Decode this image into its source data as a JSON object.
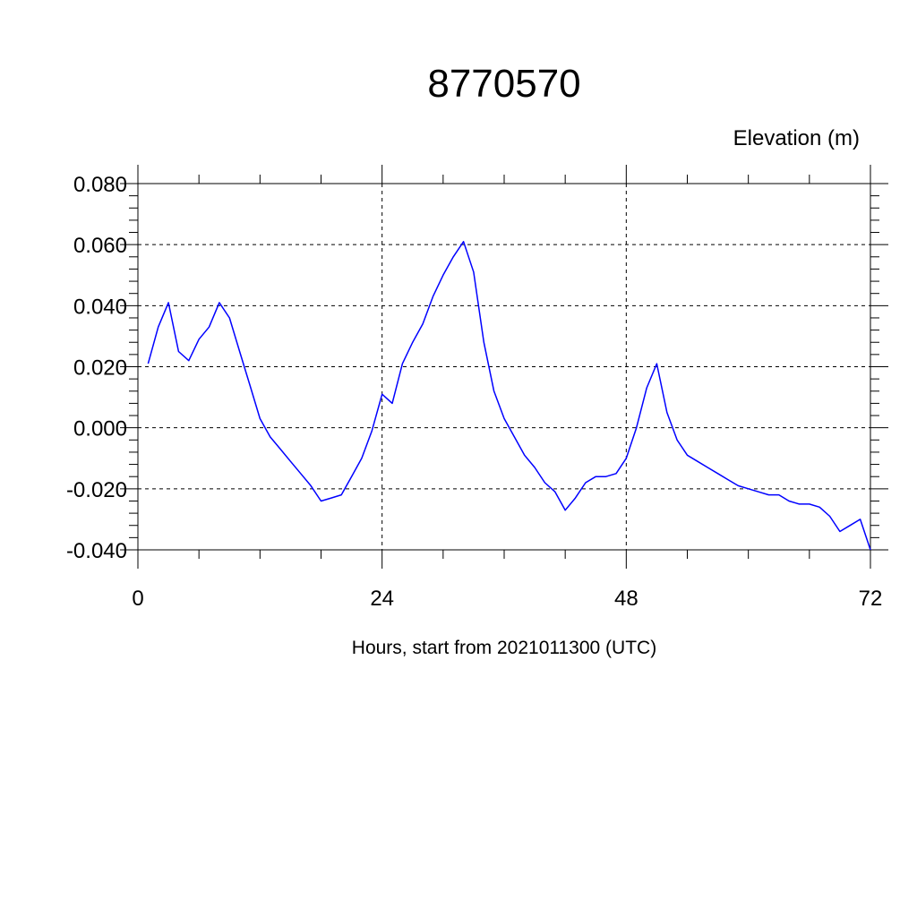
{
  "chart_data": {
    "type": "line",
    "title": "8770570",
    "ylabel": "Elevation (m)",
    "xlabel": "Hours, start from 2021011300 (UTC)",
    "xlim": [
      0,
      72
    ],
    "ylim": [
      -0.04,
      0.08
    ],
    "x_ticks": [
      0,
      24,
      48,
      72
    ],
    "x_tick_labels": [
      "0",
      "24",
      "48",
      "72"
    ],
    "y_ticks": [
      -0.04,
      -0.02,
      0.0,
      0.02,
      0.04,
      0.06,
      0.08
    ],
    "y_tick_labels": [
      "-0.040",
      "-0.020",
      "0.000",
      "0.020",
      "0.040",
      "0.060",
      "0.080"
    ],
    "grid": true,
    "line_color": "#0000ff",
    "series": [
      {
        "x": [
          1,
          2,
          3,
          4,
          5,
          6,
          7,
          8,
          9,
          10,
          11,
          12,
          13,
          14,
          15,
          16,
          17,
          18,
          19,
          20,
          21,
          22,
          23,
          24,
          25,
          26,
          27,
          28,
          29,
          30,
          31,
          32,
          33,
          34,
          35,
          36,
          37,
          38,
          39,
          40,
          41,
          42,
          43,
          44,
          45,
          46,
          47,
          48,
          49,
          50,
          51,
          52,
          53,
          54,
          55,
          56,
          57,
          58,
          59,
          60,
          61,
          62,
          63,
          64,
          65,
          66,
          67,
          68,
          69,
          70,
          71,
          72
        ],
        "values": [
          0.021,
          0.033,
          0.041,
          0.025,
          0.022,
          0.029,
          0.033,
          0.041,
          0.036,
          0.025,
          0.014,
          0.003,
          -0.003,
          -0.007,
          -0.011,
          -0.015,
          -0.019,
          -0.024,
          -0.023,
          -0.022,
          -0.016,
          -0.01,
          -0.001,
          0.011,
          0.008,
          0.021,
          0.028,
          0.034,
          0.043,
          0.05,
          0.056,
          0.061,
          0.051,
          0.028,
          0.012,
          0.003,
          -0.003,
          -0.009,
          -0.013,
          -0.018,
          -0.021,
          -0.027,
          -0.023,
          -0.018,
          -0.016,
          -0.016,
          -0.015,
          -0.01,
          0.0,
          0.013,
          0.021,
          0.005,
          -0.004,
          -0.009,
          -0.011,
          -0.013,
          -0.015,
          -0.017,
          -0.019,
          -0.02,
          -0.021,
          -0.022,
          -0.022,
          -0.024,
          -0.025,
          -0.025,
          -0.026,
          -0.029,
          -0.034,
          -0.032,
          -0.03,
          -0.04
        ]
      }
    ]
  }
}
